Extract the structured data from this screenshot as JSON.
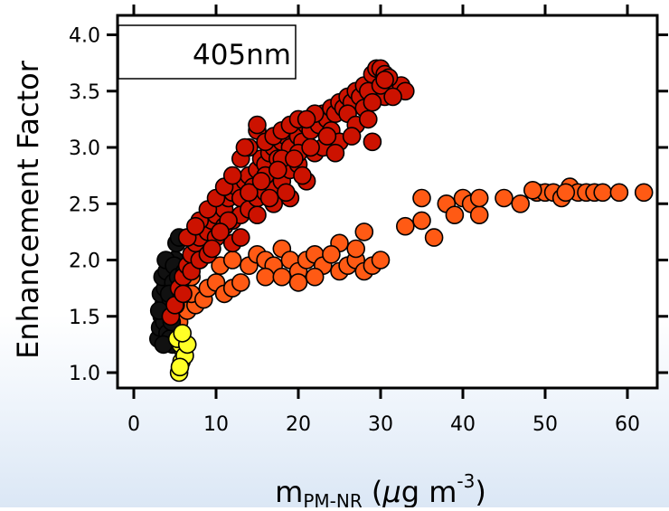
{
  "chart_data": {
    "type": "scatter",
    "title": "",
    "legend_text": "405nm",
    "legend_placement": "top-left",
    "ylabel": "Enhancement Factor",
    "xlabel_main": "m",
    "xlabel_sub": "PM-NR",
    "xlabel_unit_open": " (",
    "xlabel_mu": "μ",
    "xlabel_unit_mid": "g m",
    "xlabel_sup": "-3",
    "xlabel_unit_close": ")",
    "xlim": [
      -2,
      64
    ],
    "ylim": [
      0.9,
      4.1
    ],
    "x_ticks": [
      0,
      10,
      20,
      30,
      40,
      50,
      60
    ],
    "x_tick_labels": [
      "0",
      "10",
      "20",
      "30",
      "40",
      "50",
      "60"
    ],
    "y_ticks": [
      1.0,
      1.5,
      2.0,
      2.5,
      3.0,
      3.5,
      4.0
    ],
    "y_tick_labels": [
      "1.0",
      "1.5",
      "2.0",
      "2.5",
      "3.0",
      "3.5",
      "4.0"
    ],
    "grid": false,
    "colors": {
      "red": "#cc1200",
      "orange": "#ff5a14",
      "black": "#111111",
      "yellow": "#ffff26",
      "marker_edge": "#000000"
    },
    "series": [
      {
        "color_key": "orange",
        "points": [
          [
            5.5,
            1.45
          ],
          [
            6.5,
            1.55
          ],
          [
            7.5,
            1.6
          ],
          [
            7,
            1.7
          ],
          [
            8.5,
            1.65
          ],
          [
            9,
            1.75
          ],
          [
            10,
            1.8
          ],
          [
            11,
            1.7
          ],
          [
            12,
            1.75
          ],
          [
            13,
            1.8
          ],
          [
            10.5,
            1.95
          ],
          [
            12,
            2.0
          ],
          [
            14,
            1.95
          ],
          [
            15,
            2.05
          ],
          [
            16,
            2.0
          ],
          [
            17,
            1.95
          ],
          [
            18,
            2.1
          ],
          [
            19,
            2.0
          ],
          [
            20,
            1.9
          ],
          [
            21,
            2.0
          ],
          [
            22,
            2.05
          ],
          [
            23,
            1.95
          ],
          [
            16,
            1.85
          ],
          [
            18,
            1.85
          ],
          [
            20,
            1.8
          ],
          [
            22,
            1.85
          ],
          [
            25,
            1.9
          ],
          [
            26,
            1.95
          ],
          [
            27,
            2.0
          ],
          [
            28,
            1.9
          ],
          [
            29,
            1.95
          ],
          [
            30,
            2.0
          ],
          [
            27,
            2.1
          ],
          [
            25,
            2.15
          ],
          [
            28,
            2.25
          ],
          [
            24,
            2.05
          ],
          [
            8,
            2.0
          ],
          [
            9,
            2.1
          ],
          [
            6,
            1.95
          ],
          [
            7,
            1.85
          ],
          [
            33,
            2.3
          ],
          [
            35,
            2.35
          ],
          [
            36.5,
            2.2
          ],
          [
            35,
            2.55
          ],
          [
            38,
            2.5
          ],
          [
            39,
            2.4
          ],
          [
            40,
            2.55
          ],
          [
            41,
            2.5
          ],
          [
            42,
            2.4
          ],
          [
            42,
            2.55
          ],
          [
            45,
            2.55
          ],
          [
            47,
            2.5
          ],
          [
            49,
            2.6
          ],
          [
            50,
            2.6
          ],
          [
            51,
            2.6
          ],
          [
            52,
            2.55
          ],
          [
            53,
            2.65
          ],
          [
            54,
            2.6
          ],
          [
            55,
            2.6
          ],
          [
            56,
            2.6
          ],
          [
            57,
            2.6
          ],
          [
            59,
            2.6
          ],
          [
            62,
            2.6
          ],
          [
            48.5,
            2.62
          ],
          [
            52.5,
            2.6
          ]
        ]
      },
      {
        "color_key": "black",
        "points": [
          [
            3,
            1.3
          ],
          [
            3.2,
            1.4
          ],
          [
            3.4,
            1.5
          ],
          [
            3.6,
            1.6
          ],
          [
            3.3,
            1.7
          ],
          [
            3.8,
            1.75
          ],
          [
            3.5,
            1.85
          ],
          [
            4,
            1.9
          ],
          [
            3.7,
            1.45
          ],
          [
            4.2,
            1.55
          ],
          [
            4.5,
            1.65
          ],
          [
            4.1,
            1.35
          ],
          [
            4.8,
            1.8
          ],
          [
            5,
            2.0
          ],
          [
            5.2,
            2.15
          ],
          [
            5.5,
            2.2
          ],
          [
            3.9,
            2.0
          ],
          [
            4.4,
            1.3
          ],
          [
            4.6,
            1.45
          ],
          [
            5.1,
            1.6
          ],
          [
            3.1,
            1.55
          ],
          [
            4.3,
            1.7
          ],
          [
            4.9,
            1.95
          ],
          [
            5.4,
            1.85
          ],
          [
            4.7,
            1.25
          ],
          [
            3.6,
            1.25
          ],
          [
            5.8,
            1.7
          ],
          [
            6.2,
            1.9
          ]
        ]
      },
      {
        "color_key": "red",
        "points": [
          [
            4.5,
            1.5
          ],
          [
            5,
            1.6
          ],
          [
            5.5,
            1.75
          ],
          [
            6,
            1.85
          ],
          [
            6.5,
            1.95
          ],
          [
            7,
            2.05
          ],
          [
            7.5,
            2.15
          ],
          [
            8,
            2.2
          ],
          [
            8.5,
            2.3
          ],
          [
            9,
            2.25
          ],
          [
            9.5,
            2.35
          ],
          [
            10,
            2.4
          ],
          [
            10.5,
            2.5
          ],
          [
            11,
            2.45
          ],
          [
            11.5,
            2.55
          ],
          [
            12,
            2.6
          ],
          [
            12.5,
            2.65
          ],
          [
            13,
            2.55
          ],
          [
            13.5,
            2.7
          ],
          [
            14,
            2.75
          ],
          [
            14.5,
            2.65
          ],
          [
            15,
            2.8
          ],
          [
            15.5,
            2.9
          ],
          [
            16,
            2.85
          ],
          [
            16.5,
            2.95
          ],
          [
            17,
            3.0
          ],
          [
            17.5,
            2.9
          ],
          [
            18,
            3.05
          ],
          [
            18.5,
            3.1
          ],
          [
            19,
            3.0
          ],
          [
            19.5,
            3.15
          ],
          [
            20,
            3.1
          ],
          [
            20.5,
            3.05
          ],
          [
            21,
            3.2
          ],
          [
            21.5,
            3.15
          ],
          [
            22,
            3.25
          ],
          [
            22.5,
            3.2
          ],
          [
            23,
            3.3
          ],
          [
            23.5,
            3.25
          ],
          [
            24,
            3.35
          ],
          [
            24.5,
            3.3
          ],
          [
            25,
            3.4
          ],
          [
            25.5,
            3.35
          ],
          [
            26,
            3.45
          ],
          [
            26.5,
            3.4
          ],
          [
            27,
            3.5
          ],
          [
            27.5,
            3.45
          ],
          [
            28,
            3.55
          ],
          [
            28.5,
            3.5
          ],
          [
            29,
            3.65
          ],
          [
            29.5,
            3.7
          ],
          [
            30,
            3.7
          ],
          [
            30.5,
            3.65
          ],
          [
            31,
            3.6
          ],
          [
            31.5,
            3.55
          ],
          [
            32,
            3.5
          ],
          [
            32.5,
            3.55
          ],
          [
            33,
            3.5
          ],
          [
            30.5,
            3.45
          ],
          [
            29,
            3.05
          ],
          [
            31,
            3.62
          ],
          [
            8,
            2.35
          ],
          [
            9,
            2.45
          ],
          [
            10,
            2.55
          ],
          [
            11,
            2.65
          ],
          [
            12,
            2.75
          ],
          [
            13,
            2.9
          ],
          [
            14,
            3.0
          ],
          [
            15,
            3.15
          ],
          [
            16,
            3.05
          ],
          [
            17,
            3.1
          ],
          [
            18,
            3.15
          ],
          [
            19,
            3.2
          ],
          [
            20,
            3.25
          ],
          [
            22,
            3.3
          ],
          [
            24,
            3.15
          ],
          [
            26,
            3.3
          ],
          [
            28,
            3.35
          ],
          [
            10,
            2.2
          ],
          [
            11,
            2.3
          ],
          [
            12,
            2.35
          ],
          [
            13,
            2.4
          ],
          [
            14,
            2.45
          ],
          [
            15,
            2.55
          ],
          [
            16,
            2.6
          ],
          [
            17,
            2.65
          ],
          [
            18,
            2.7
          ],
          [
            19,
            2.8
          ],
          [
            20,
            2.85
          ],
          [
            21,
            2.7
          ],
          [
            12,
            2.15
          ],
          [
            13,
            2.2
          ],
          [
            15,
            2.4
          ],
          [
            17,
            2.5
          ],
          [
            19,
            2.55
          ],
          [
            6,
            1.7
          ],
          [
            7,
            1.9
          ],
          [
            8,
            2.0
          ],
          [
            9,
            2.05
          ],
          [
            6.5,
            2.2
          ],
          [
            7.5,
            2.3
          ],
          [
            16,
            2.75
          ],
          [
            18,
            2.9
          ],
          [
            20,
            2.95
          ],
          [
            22,
            2.95
          ],
          [
            23,
            3.0
          ],
          [
            25,
            3.05
          ],
          [
            27,
            3.2
          ],
          [
            29,
            3.4
          ],
          [
            30,
            3.55
          ],
          [
            31.5,
            3.45
          ],
          [
            30.5,
            3.6
          ],
          [
            14,
            2.6
          ],
          [
            15.5,
            2.7
          ],
          [
            17.5,
            2.8
          ],
          [
            19.5,
            2.9
          ],
          [
            21.5,
            3.0
          ],
          [
            23.5,
            3.1
          ],
          [
            11.5,
            2.35
          ],
          [
            9.5,
            2.1
          ],
          [
            10.5,
            2.25
          ],
          [
            16.5,
            2.55
          ],
          [
            18.5,
            2.6
          ],
          [
            20.5,
            2.75
          ],
          [
            24.5,
            2.95
          ],
          [
            26.5,
            3.1
          ],
          [
            28.5,
            3.25
          ],
          [
            13.5,
            3.0
          ],
          [
            15,
            3.2
          ],
          [
            21,
            3.25
          ]
        ]
      },
      {
        "color_key": "yellow",
        "points": [
          [
            5.5,
            1.0
          ],
          [
            5.8,
            1.1
          ],
          [
            6,
            1.2
          ],
          [
            5.7,
            1.25
          ],
          [
            6.2,
            1.15
          ],
          [
            5.3,
            1.3
          ],
          [
            6.5,
            1.25
          ],
          [
            5.9,
            1.35
          ],
          [
            5.6,
            1.05
          ]
        ]
      }
    ]
  }
}
